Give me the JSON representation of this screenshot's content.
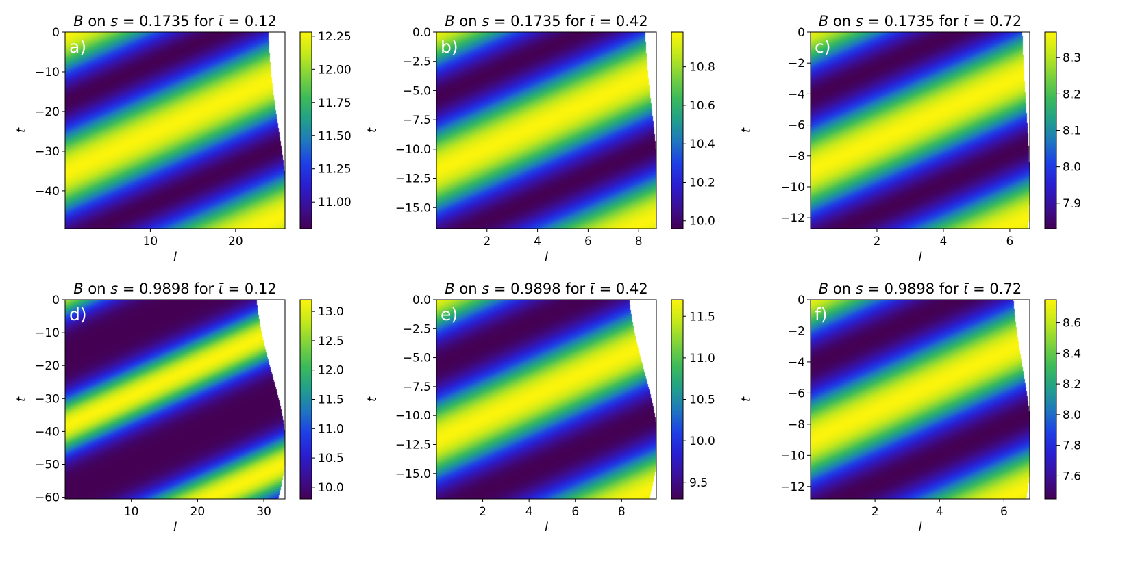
{
  "chart_data": [
    {
      "type": "heatmap",
      "panel_label": "a)",
      "title_parts": {
        "var": "B",
        "on": " on ",
        "s_sym": "s",
        "eq": " = ",
        "s_val": "0.1735",
        "for": " for ",
        "iota_sym": "ῑ",
        "iota_val": "0.12"
      },
      "title": "B on s = 0.1735 for ῑ = 0.12",
      "xlabel": "l",
      "ylabel": "t",
      "xlim": [
        0,
        25.8
      ],
      "ylim": [
        -49.5,
        0
      ],
      "xticks": [
        10,
        20
      ],
      "xtick_labels": [
        "10",
        "20"
      ],
      "yticks": [
        0,
        -10,
        -20,
        -30,
        -40
      ],
      "ytick_labels": [
        "0",
        "−10",
        "−20",
        "−30",
        "−40"
      ],
      "colorbar": {
        "min": 10.8,
        "max": 12.28,
        "ticks": [
          11.0,
          11.25,
          11.5,
          11.75,
          12.0,
          12.25
        ],
        "tick_labels": [
          "11.00",
          "11.25",
          "11.50",
          "11.75",
          "12.00",
          "12.25"
        ]
      },
      "wave": {
        "cycles": 1.4,
        "phase": 0.0,
        "sharp": 1.0
      },
      "boundary": {
        "left": 26.0,
        "bulge": 2.3,
        "t_center": -44.0,
        "width": 40.0
      }
    },
    {
      "type": "heatmap",
      "panel_label": "b)",
      "title_parts": {
        "var": "B",
        "on": " on ",
        "s_sym": "s",
        "eq": " = ",
        "s_val": "0.1735",
        "for": " for ",
        "iota_sym": "ῑ",
        "iota_val": "0.42"
      },
      "title": "B on s = 0.1735 for ῑ = 0.42",
      "xlabel": "l",
      "ylabel": "t",
      "xlim": [
        0,
        8.7
      ],
      "ylim": [
        -16.8,
        0
      ],
      "xticks": [
        2,
        4,
        6,
        8
      ],
      "xtick_labels": [
        "2",
        "4",
        "6",
        "8"
      ],
      "yticks": [
        0,
        -2.5,
        -5,
        -7.5,
        -10,
        -12.5,
        -15
      ],
      "ytick_labels": [
        "0.0",
        "−2.5",
        "−5.0",
        "−7.5",
        "−10.0",
        "−12.5",
        "−15.0"
      ],
      "colorbar": {
        "min": 9.96,
        "max": 10.98,
        "ticks": [
          10.0,
          10.2,
          10.4,
          10.6,
          10.8
        ],
        "tick_labels": [
          "10.0",
          "10.2",
          "10.4",
          "10.6",
          "10.8"
        ]
      },
      "wave": {
        "cycles": 1.35,
        "phase": 0.05,
        "sharp": 1.0
      },
      "boundary": {
        "left": 8.75,
        "bulge": 0.55,
        "t_center": -13.0,
        "width": 13.0
      }
    },
    {
      "type": "heatmap",
      "panel_label": "c)",
      "title_parts": {
        "var": "B",
        "on": " on ",
        "s_sym": "s",
        "eq": " = ",
        "s_val": "0.1735",
        "for": " for ",
        "iota_sym": "ῑ",
        "iota_val": "0.72"
      },
      "title": "B on s = 0.1735 for ῑ = 0.72",
      "xlabel": "l",
      "ylabel": "t",
      "xlim": [
        0,
        6.6
      ],
      "ylim": [
        -12.7,
        0
      ],
      "xticks": [
        2,
        4,
        6
      ],
      "xtick_labels": [
        "2",
        "4",
        "6"
      ],
      "yticks": [
        0,
        -2,
        -4,
        -6,
        -8,
        -10,
        -12
      ],
      "ytick_labels": [
        "0",
        "−2",
        "−4",
        "−6",
        "−8",
        "−10",
        "−12"
      ],
      "colorbar": {
        "min": 7.83,
        "max": 8.37,
        "ticks": [
          7.9,
          8.0,
          8.1,
          8.2,
          8.3
        ],
        "tick_labels": [
          "7.9",
          "8.0",
          "8.1",
          "8.2",
          "8.3"
        ]
      },
      "wave": {
        "cycles": 1.35,
        "phase": 0.05,
        "sharp": 1.0
      },
      "boundary": {
        "left": 6.6,
        "bulge": 0.25,
        "t_center": -9.8,
        "width": 10.0
      }
    },
    {
      "type": "heatmap",
      "panel_label": "d)",
      "title_parts": {
        "var": "B",
        "on": " on ",
        "s_sym": "s",
        "eq": " = ",
        "s_val": "0.9898",
        "for": " for ",
        "iota_sym": "ῑ",
        "iota_val": "0.12"
      },
      "title": "B on s = 0.9898 for ῑ = 0.12",
      "xlabel": "l",
      "ylabel": "t",
      "xlim": [
        0,
        33.2
      ],
      "ylim": [
        -60.5,
        0
      ],
      "xticks": [
        10,
        20,
        30
      ],
      "xtick_labels": [
        "10",
        "20",
        "30"
      ],
      "yticks": [
        0,
        -10,
        -20,
        -30,
        -40,
        -50,
        -60
      ],
      "ytick_labels": [
        "0",
        "−10",
        "−20",
        "−30",
        "−40",
        "−50",
        "−60"
      ],
      "colorbar": {
        "min": 9.8,
        "max": 13.2,
        "ticks": [
          10.0,
          10.5,
          11.0,
          11.5,
          12.0,
          12.5,
          13.0
        ],
        "tick_labels": [
          "10.0",
          "10.5",
          "11.0",
          "11.5",
          "12.0",
          "12.5",
          "13.0"
        ]
      },
      "wave": {
        "cycles": 1.45,
        "phase": 0.08,
        "sharp": 2.2
      },
      "boundary": {
        "left": 33.3,
        "bulge": 5.0,
        "t_center": -45.0,
        "width": 46.0
      }
    },
    {
      "type": "heatmap",
      "panel_label": "e)",
      "title_parts": {
        "var": "B",
        "on": " on ",
        "s_sym": "s",
        "eq": " = ",
        "s_val": "0.9898",
        "for": " for ",
        "iota_sym": "ῑ",
        "iota_val": "0.42"
      },
      "title": "B on s = 0.9898 for ῑ = 0.42",
      "xlabel": "l",
      "ylabel": "t",
      "xlim": [
        0,
        9.5
      ],
      "ylim": [
        -17.2,
        0
      ],
      "xticks": [
        2,
        4,
        6,
        8
      ],
      "xtick_labels": [
        "2",
        "4",
        "6",
        "8"
      ],
      "yticks": [
        0,
        -2.5,
        -5,
        -7.5,
        -10,
        -12.5,
        -15
      ],
      "ytick_labels": [
        "0.0",
        "−2.5",
        "−5.0",
        "−7.5",
        "−10.0",
        "−12.5",
        "−15.0"
      ],
      "colorbar": {
        "min": 9.3,
        "max": 11.7,
        "ticks": [
          9.5,
          10.0,
          10.5,
          11.0,
          11.5
        ],
        "tick_labels": [
          "9.5",
          "10.0",
          "10.5",
          "11.0",
          "11.5"
        ]
      },
      "wave": {
        "cycles": 1.35,
        "phase": 0.05,
        "sharp": 1.2
      },
      "boundary": {
        "left": 9.55,
        "bulge": 1.4,
        "t_center": -12.5,
        "width": 13.0
      }
    },
    {
      "type": "heatmap",
      "panel_label": "f)",
      "title_parts": {
        "var": "B",
        "on": " on ",
        "s_sym": "s",
        "eq": " = ",
        "s_val": "0.9898",
        "for": " for ",
        "iota_sym": "ῑ",
        "iota_val": "0.72"
      },
      "title": "B on s = 0.9898 for ῑ = 0.72",
      "xlabel": "l",
      "ylabel": "t",
      "xlim": [
        0,
        6.8
      ],
      "ylim": [
        -12.8,
        0
      ],
      "xticks": [
        2,
        4,
        6
      ],
      "xtick_labels": [
        "2",
        "4",
        "6"
      ],
      "yticks": [
        0,
        -2,
        -4,
        -6,
        -8,
        -10,
        -12
      ],
      "ytick_labels": [
        "0",
        "−2",
        "−4",
        "−6",
        "−8",
        "−10",
        "−12"
      ],
      "colorbar": {
        "min": 7.45,
        "max": 8.75,
        "ticks": [
          7.6,
          7.8,
          8.0,
          8.2,
          8.4,
          8.6
        ],
        "tick_labels": [
          "7.6",
          "7.8",
          "8.0",
          "8.2",
          "8.4",
          "8.6"
        ]
      },
      "wave": {
        "cycles": 1.35,
        "phase": 0.05,
        "sharp": 1.1
      },
      "boundary": {
        "left": 6.85,
        "bulge": 0.65,
        "t_center": -9.3,
        "width": 10.0
      }
    }
  ],
  "colormap": [
    "#440154",
    "#3b0f97",
    "#2a1fd0",
    "#1e40e6",
    "#1f78c0",
    "#21a08a",
    "#3dbb5a",
    "#7fd33c",
    "#c4e81c",
    "#fbf40c"
  ]
}
